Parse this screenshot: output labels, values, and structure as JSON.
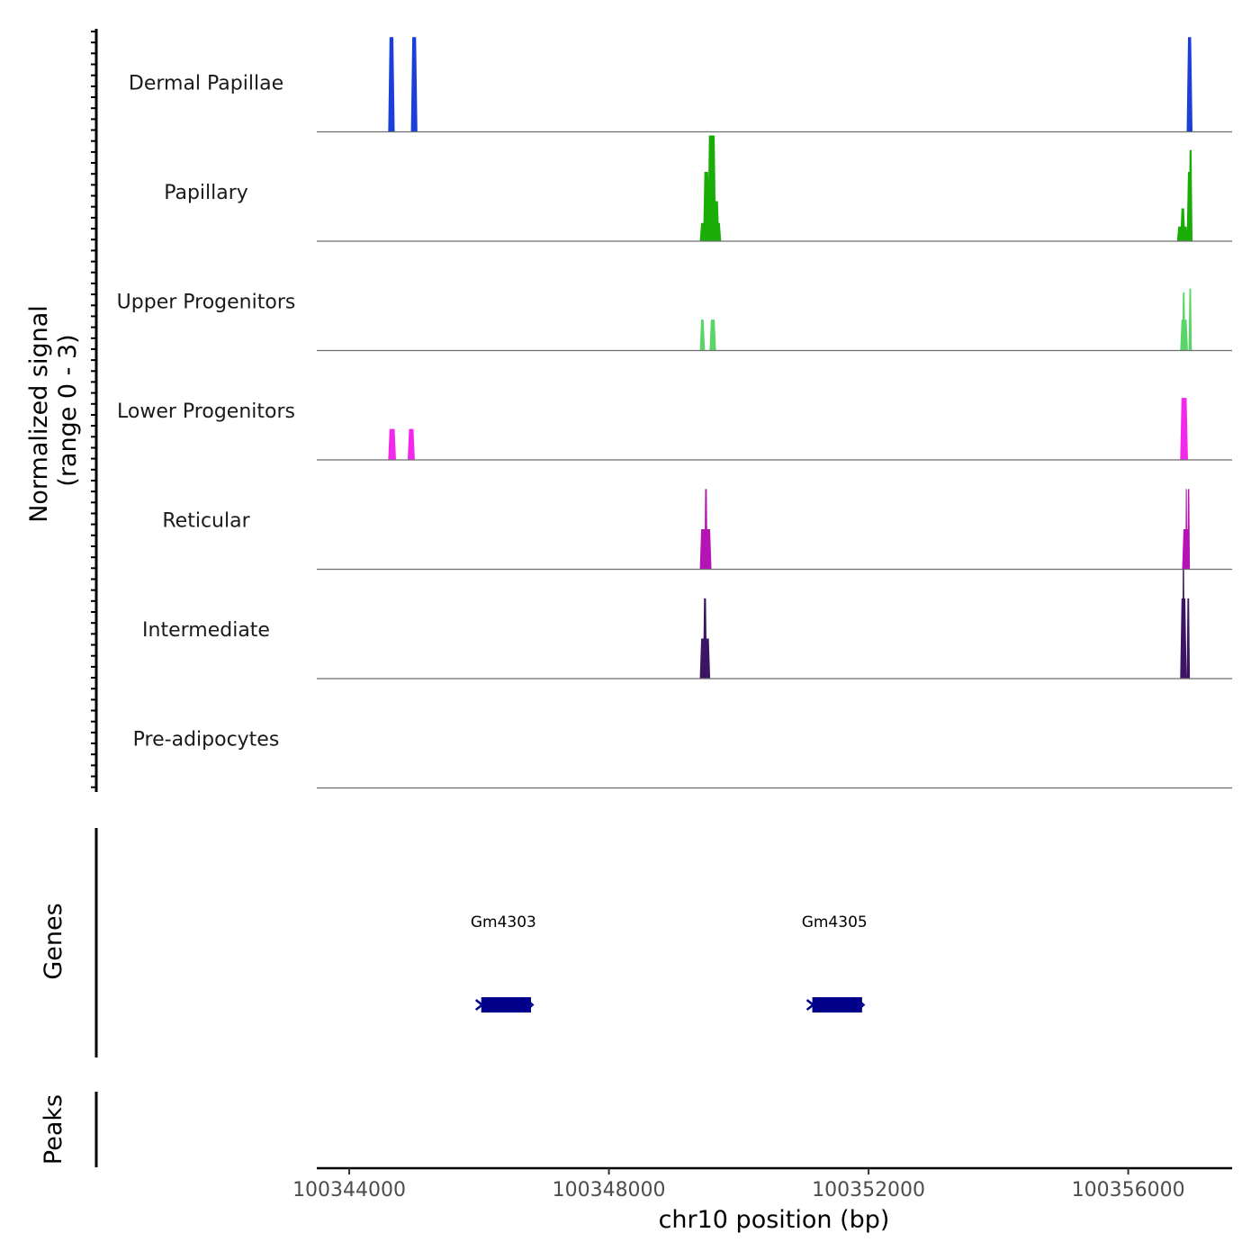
{
  "chart_data": {
    "type": "area",
    "title": "",
    "coverage": {
      "ylabel_line1": "Normalized signal",
      "ylabel_line2": "(range 0 - 3)",
      "ylim": [
        0,
        3
      ],
      "tracks": [
        {
          "name": "Dermal Papillae",
          "color": "#1c3fd9",
          "peaks": [
            [
              100344600,
              100344700,
              2.6
            ],
            [
              100344950,
              100345050,
              2.6
            ],
            [
              100356900,
              100356990,
              2.6
            ]
          ]
        },
        {
          "name": "Papillary",
          "color": "#1aad08",
          "peaks": [
            [
              100349400,
              100349500,
              0.5
            ],
            [
              100349450,
              100349550,
              1.9
            ],
            [
              100349520,
              100349650,
              2.9
            ],
            [
              100349550,
              100349700,
              1.1
            ],
            [
              100349600,
              100349730,
              0.5
            ],
            [
              100356750,
              100356850,
              0.4
            ],
            [
              100356800,
              100356880,
              0.9
            ],
            [
              100356820,
              100356920,
              0.4
            ],
            [
              100356900,
              100356980,
              1.9
            ],
            [
              100356930,
              100356990,
              2.5
            ]
          ]
        },
        {
          "name": "Upper Progenitors",
          "color": "#5ad568",
          "peaks": [
            [
              100349400,
              100349480,
              0.85
            ],
            [
              100349550,
              100349650,
              0.85
            ],
            [
              100356800,
              100356920,
              0.85
            ],
            [
              100356830,
              100356880,
              1.6
            ],
            [
              100356930,
              100356980,
              1.7
            ]
          ]
        },
        {
          "name": "Lower Progenitors",
          "color": "#f229ea",
          "peaks": [
            [
              100344600,
              100344720,
              0.85
            ],
            [
              100344900,
              100345010,
              0.85
            ],
            [
              100356800,
              100356920,
              1.7
            ]
          ]
        },
        {
          "name": "Reticular",
          "color": "#b514b5",
          "peaks": [
            [
              100349400,
              100349580,
              1.1
            ],
            [
              100349470,
              100349520,
              2.2
            ],
            [
              100356830,
              100356940,
              1.1
            ],
            [
              100356880,
              100356910,
              2.2
            ],
            [
              100356910,
              100356950,
              2.2
            ]
          ]
        },
        {
          "name": "Intermediate",
          "color": "#3c1464",
          "peaks": [
            [
              100349400,
              100349560,
              1.1
            ],
            [
              100349450,
              100349510,
              2.2
            ],
            [
              100356800,
              100356900,
              2.2
            ],
            [
              100356830,
              100356870,
              3.0
            ],
            [
              100356900,
              100356950,
              2.2
            ]
          ]
        },
        {
          "name": "Pre-adipocytes",
          "color": "#000000",
          "peaks": []
        }
      ]
    },
    "genes": {
      "title": "Genes",
      "color": "#00008b",
      "items": [
        {
          "name": "Gm4303",
          "start": 100345950,
          "end": 100346800
        },
        {
          "name": "Gm4305",
          "start": 100351050,
          "end": 100351900
        }
      ]
    },
    "peaks_panel": {
      "title": "Peaks"
    },
    "x_axis": {
      "xlabel": "chr10 position (bp)",
      "xlim": [
        100343500,
        100357600
      ],
      "ticks": [
        100344000,
        100348000,
        100352000,
        100356000
      ],
      "tick_labels": [
        "100344000",
        "100348000",
        "100352000",
        "100356000"
      ]
    }
  }
}
